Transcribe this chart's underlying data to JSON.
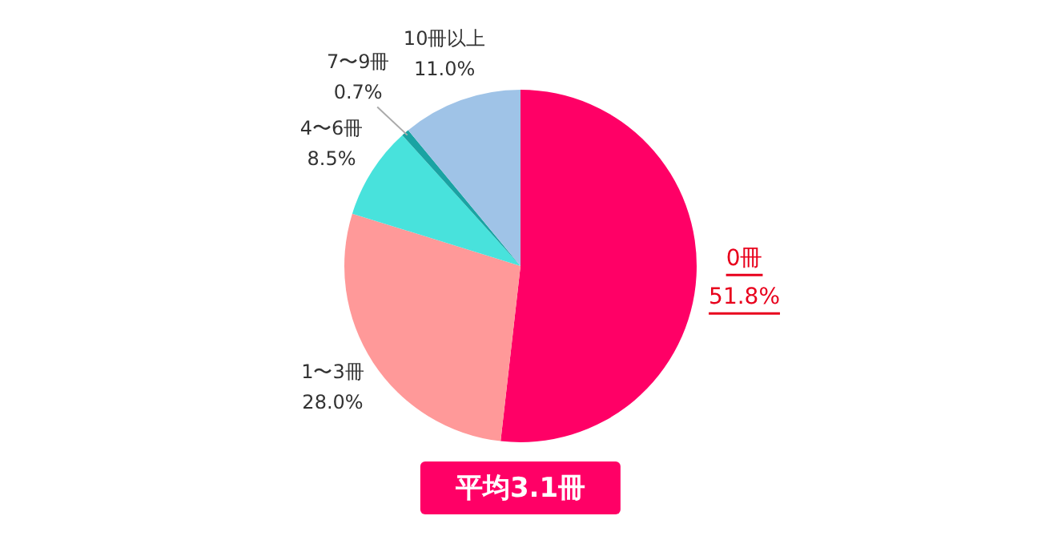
{
  "chart_data": {
    "type": "pie",
    "categories": [
      "0冊",
      "1〜3冊",
      "4〜6冊",
      "7〜9冊",
      "10冊以上"
    ],
    "values": [
      51.8,
      28.0,
      8.5,
      0.7,
      11.0
    ],
    "value_labels": [
      "51.8%",
      "28.0%",
      "8.5%",
      "0.7%",
      "11.0%"
    ],
    "colors": [
      "#ff0066",
      "#ff9999",
      "#48e2dc",
      "#1aa3a3",
      "#9fc3e7"
    ],
    "legend": false,
    "annotations": [
      "平均3.1冊"
    ]
  }
}
